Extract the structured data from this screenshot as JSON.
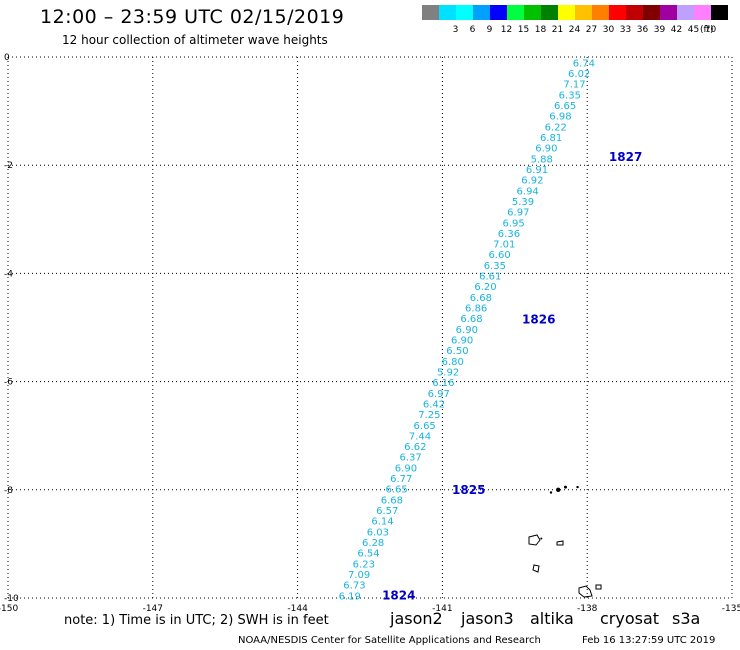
{
  "header": {
    "title": "12:00 – 23:59 UTC 02/15/2019",
    "subtitle": "12 hour collection of altimeter wave heights"
  },
  "legend": {
    "unit": "(ft)",
    "items": [
      {
        "label": "",
        "color": "#808080"
      },
      {
        "label": "3",
        "color": "#00e0ff"
      },
      {
        "label": "6",
        "color": "#00ffff"
      },
      {
        "label": "9",
        "color": "#00a0ff"
      },
      {
        "label": "12",
        "color": "#0000ff"
      },
      {
        "label": "15",
        "color": "#00ff40"
      },
      {
        "label": "18",
        "color": "#00c000"
      },
      {
        "label": "21",
        "color": "#008000"
      },
      {
        "label": "24",
        "color": "#ffff00"
      },
      {
        "label": "27",
        "color": "#ffc000"
      },
      {
        "label": "30",
        "color": "#ff8000"
      },
      {
        "label": "33",
        "color": "#ff0000"
      },
      {
        "label": "36",
        "color": "#c00000"
      },
      {
        "label": "39",
        "color": "#800000"
      },
      {
        "label": "42",
        "color": "#a000a0"
      },
      {
        "label": "45",
        "color": "#c0a0ff"
      },
      {
        "label": "70",
        "color": "#ff80ff"
      },
      {
        "label": "",
        "color": "#000000"
      }
    ]
  },
  "map": {
    "lon_range": [
      -150,
      -135
    ],
    "lat_range": [
      -10,
      0
    ],
    "x_ticks": [
      "-150",
      "-147",
      "-144",
      "-141",
      "-138",
      "-135"
    ],
    "y_ticks": [
      "0",
      "-2",
      "-4",
      "-6",
      "-8",
      "-10"
    ],
    "gridlines": true,
    "value_color": "#18b4dc",
    "track_label_color": "#0000c8",
    "track": {
      "start": {
        "lon": -138.3,
        "lat": -0.1
      },
      "end": {
        "lon": -143.15,
        "lat": -9.95
      }
    },
    "wave_heights": [
      "6.74",
      "6.02",
      "7.17",
      "6.35",
      "6.65",
      "6.98",
      "6.22",
      "6.81",
      "6.90",
      "5.88",
      "6.91",
      "6.92",
      "6.94",
      "5.39",
      "6.97",
      "6.95",
      "6.36",
      "7.01",
      "6.60",
      "6.35",
      "6.61",
      "6.20",
      "6.68",
      "6.86",
      "6.68",
      "6.90",
      "6.90",
      "6.50",
      "6.80",
      "5.92",
      "6.16",
      "6.97",
      "6.42",
      "7.25",
      "6.65",
      "7.44",
      "6.62",
      "6.37",
      "6.90",
      "6.77",
      "6.65",
      "6.68",
      "6.57",
      "6.14",
      "6.03",
      "6.28",
      "6.54",
      "6.23",
      "7.09",
      "6.73",
      "6.19"
    ],
    "time_labels": [
      {
        "text": "1827",
        "lon": -137.55,
        "lat": -1.85
      },
      {
        "text": "1826",
        "lon": -139.35,
        "lat": -4.85
      },
      {
        "text": "1825",
        "lon": -140.8,
        "lat": -8.0
      },
      {
        "text": "1824",
        "lon": -142.25,
        "lat": -9.95
      }
    ]
  },
  "footer": {
    "note": "note: 1) Time is in UTC; 2) SWH is in feet",
    "satellites": [
      {
        "name": "jason2",
        "color": "#0000ff"
      },
      {
        "name": "jason3",
        "color": "#00a000"
      },
      {
        "name": "altika",
        "color": "#ff8c00"
      },
      {
        "name": "cryosat",
        "color": "#ff0000"
      },
      {
        "name": "s3a",
        "color": "#a00000"
      }
    ],
    "credit": "NOAA/NESDIS Center for Satellite Applications and Research",
    "timestamp": "Feb 16 13:27:59 UTC 2019"
  }
}
